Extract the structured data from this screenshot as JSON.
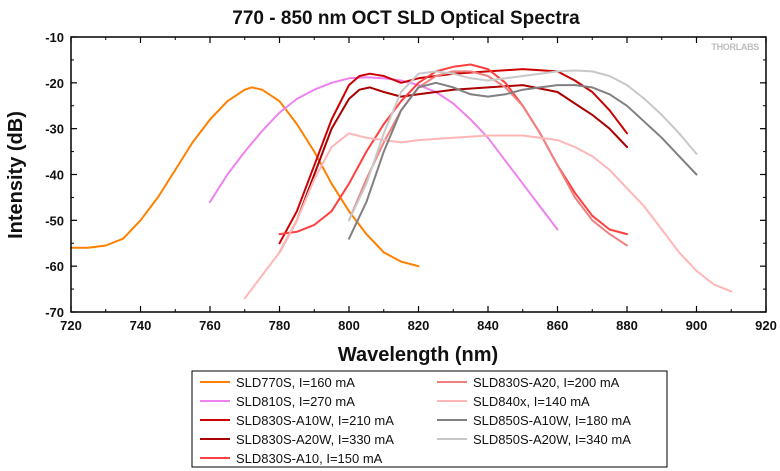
{
  "chart_data": {
    "type": "line",
    "title": "770 - 850 nm OCT SLD Optical Spectra",
    "xlabel": "Wavelength (nm)",
    "ylabel": "Intensity (dB)",
    "xlim": [
      720,
      920
    ],
    "ylim": [
      -70,
      -10
    ],
    "xticks": [
      "720",
      "740",
      "760",
      "780",
      "800",
      "820",
      "840",
      "860",
      "880",
      "900",
      "920"
    ],
    "yticks": [
      "-10",
      "-20",
      "-30",
      "-40",
      "-50",
      "-60",
      "-70"
    ],
    "grid": false,
    "legend_position": "bottom",
    "watermark": "THORLABS",
    "series": [
      {
        "name": "SLD770S, I=160 mA",
        "color": "#ff8000",
        "x": [
          720,
          725,
          730,
          735,
          740,
          745,
          750,
          755,
          760,
          765,
          770,
          772,
          775,
          780,
          785,
          790,
          795,
          800,
          805,
          810,
          815,
          820
        ],
        "y": [
          -56,
          -56,
          -55.5,
          -54,
          -50,
          -45,
          -39,
          -33,
          -28,
          -24,
          -21.5,
          -21,
          -21.5,
          -24,
          -29,
          -35,
          -42,
          -48,
          -53,
          -57,
          -59,
          -60
        ]
      },
      {
        "name": "SLD810S, I=270 mA",
        "color": "#ee82ee",
        "x": [
          760,
          765,
          770,
          775,
          780,
          785,
          790,
          795,
          800,
          805,
          810,
          815,
          820,
          825,
          830,
          835,
          840,
          845,
          850,
          855,
          860
        ],
        "y": [
          -46,
          -40,
          -35,
          -30.5,
          -26.5,
          -23.5,
          -21.5,
          -20,
          -19,
          -18.8,
          -19,
          -19.5,
          -20.5,
          -22,
          -24.5,
          -28,
          -32,
          -37,
          -42,
          -47,
          -52
        ]
      },
      {
        "name": "SLD830S-A10W, I=210 mA",
        "color": "#cc0000",
        "x": [
          780,
          785,
          790,
          795,
          800,
          803,
          806,
          810,
          815,
          820,
          830,
          840,
          850,
          860,
          865,
          870,
          875,
          880
        ],
        "y": [
          -55,
          -48,
          -38,
          -28,
          -20.5,
          -18.5,
          -18,
          -18.5,
          -20,
          -19,
          -18,
          -17.5,
          -17,
          -17.5,
          -19.5,
          -22,
          -26,
          -31
        ]
      },
      {
        "name": "SLD830S-A20W, I=330 mA",
        "color": "#aa0000",
        "x": [
          780,
          785,
          790,
          795,
          800,
          803,
          806,
          810,
          815,
          820,
          830,
          840,
          850,
          860,
          865,
          870,
          875,
          880
        ],
        "y": [
          -57,
          -50,
          -40,
          -30,
          -23.5,
          -21.5,
          -21,
          -22,
          -23,
          -22.5,
          -21.5,
          -21,
          -20.5,
          -22,
          -24.5,
          -27,
          -30,
          -34
        ]
      },
      {
        "name": "SLD830S-A10, I=150 mA",
        "color": "#ff4040",
        "x": [
          780,
          785,
          790,
          795,
          800,
          805,
          810,
          815,
          820,
          825,
          830,
          835,
          840,
          845,
          850,
          855,
          860,
          865,
          870,
          875,
          880
        ],
        "y": [
          -53,
          -52.5,
          -51,
          -48,
          -42,
          -35,
          -29,
          -24,
          -20,
          -17.5,
          -16.5,
          -16,
          -17,
          -20,
          -25,
          -31,
          -38,
          -44,
          -49,
          -52,
          -53
        ]
      },
      {
        "name": "SLD830S-A20, I=200 mA",
        "color": "#f08080",
        "x": [
          800,
          805,
          810,
          815,
          820,
          825,
          830,
          835,
          840,
          845,
          850,
          855,
          860,
          865,
          870,
          875,
          880
        ],
        "y": [
          -50,
          -41,
          -33,
          -26,
          -21,
          -18.5,
          -17.5,
          -17.5,
          -18.5,
          -21,
          -25,
          -31,
          -38,
          -45,
          -50,
          -53,
          -55.5
        ]
      },
      {
        "name": "SLD840x, I=140 mA",
        "color": "#ffb6b6",
        "x": [
          770,
          775,
          780,
          785,
          790,
          795,
          800,
          805,
          810,
          815,
          820,
          830,
          840,
          850,
          860,
          865,
          870,
          875,
          880,
          885,
          890,
          895,
          900,
          905,
          910
        ],
        "y": [
          -67,
          -62,
          -57,
          -50,
          -41,
          -34,
          -31,
          -32,
          -32.5,
          -33,
          -32.5,
          -32,
          -31.5,
          -31.5,
          -32.5,
          -34,
          -36,
          -39,
          -43,
          -47,
          -52,
          -57,
          -61,
          -64,
          -65.5
        ]
      },
      {
        "name": "SLD850S-A10W, I=180 mA",
        "color": "#808080",
        "x": [
          800,
          805,
          810,
          815,
          820,
          825,
          830,
          835,
          840,
          845,
          850,
          855,
          860,
          865,
          870,
          875,
          880,
          885,
          890,
          895,
          900
        ],
        "y": [
          -54,
          -46,
          -35,
          -26,
          -21,
          -20,
          -21,
          -22.5,
          -23,
          -22.5,
          -21.5,
          -21,
          -20.5,
          -20.5,
          -21,
          -22.5,
          -25,
          -28.5,
          -32,
          -36,
          -40
        ]
      },
      {
        "name": "SLD850S-A20W, I=340 mA",
        "color": "#c8c8c8",
        "x": [
          800,
          805,
          810,
          815,
          820,
          825,
          830,
          835,
          840,
          845,
          850,
          855,
          860,
          865,
          870,
          875,
          880,
          885,
          890,
          895,
          900
        ],
        "y": [
          -50,
          -42,
          -31,
          -22,
          -18,
          -17.5,
          -18,
          -19,
          -19.5,
          -19,
          -18.5,
          -18,
          -17.5,
          -17.3,
          -17.5,
          -18.5,
          -20.5,
          -23.5,
          -27,
          -31,
          -35.5
        ]
      }
    ]
  }
}
